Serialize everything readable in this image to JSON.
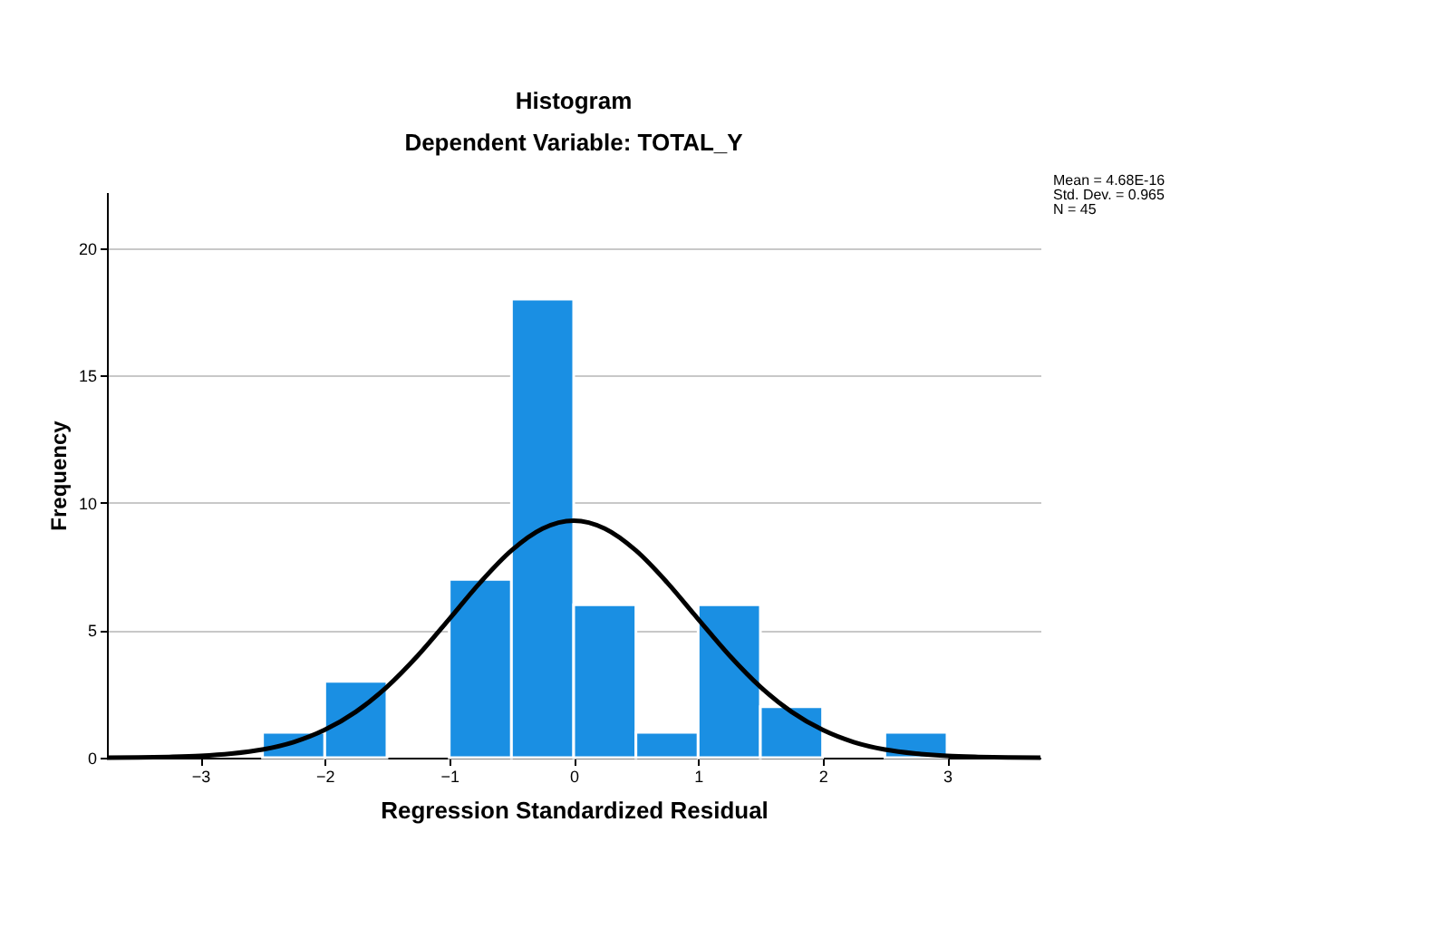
{
  "chart_data": {
    "type": "histogram",
    "title": "Histogram",
    "subtitle": "Dependent Variable: TOTAL_Y",
    "xlabel": "Regression Standardized Residual",
    "ylabel": "Frequency",
    "bins": [
      -2.5,
      -2.0,
      -1.5,
      -1.0,
      -0.5,
      0.0,
      0.5,
      1.0,
      1.5,
      2.0,
      2.5,
      3.0
    ],
    "values": [
      1,
      3,
      0,
      7,
      18,
      6,
      1,
      6,
      2,
      0,
      1
    ],
    "color": "#1a8fe3",
    "series": [
      {
        "type": "line",
        "color": "#000000",
        "x": [
          -3.75,
          -3.5,
          -3.25,
          -3.0,
          -2.75,
          -2.5,
          -2.25,
          -2.0,
          -1.75,
          -1.5,
          -1.25,
          -1.0,
          -0.75,
          -0.5,
          -0.25,
          0.0,
          0.25,
          0.5,
          0.75,
          1.0,
          1.25,
          1.5,
          1.75,
          2.0,
          2.25,
          2.5,
          2.75,
          3.0,
          3.25,
          3.5,
          3.75
        ],
        "values": [
          0.0,
          0.01,
          0.03,
          0.07,
          0.16,
          0.32,
          0.61,
          1.09,
          1.8,
          2.78,
          4.02,
          5.44,
          6.88,
          8.13,
          8.99,
          9.3,
          8.99,
          8.13,
          6.88,
          5.44,
          4.02,
          2.78,
          1.8,
          1.09,
          0.61,
          0.32,
          0.16,
          0.07,
          0.03,
          0.01,
          0.0
        ]
      }
    ],
    "xlim": [
      -3.75,
      3.75
    ],
    "ylim": [
      0,
      22.2
    ],
    "xticks": [
      -3,
      -2,
      -1,
      0,
      1,
      2,
      3
    ],
    "yticks": [
      0,
      5,
      10,
      15,
      20
    ],
    "grid": "y",
    "legend": false,
    "annotations": [
      "Mean = 4.68E-16",
      "Std. Dev. = 0.965",
      "N = 45"
    ]
  }
}
